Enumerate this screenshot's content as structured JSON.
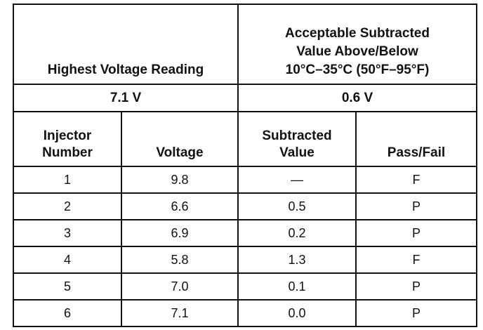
{
  "table": {
    "top_headers": {
      "highest": "Highest Voltage Reading",
      "acceptable": [
        "Acceptable Subtracted",
        "Value Above/Below",
        "10°C–35°C (50°F–95°F)"
      ]
    },
    "top_values": {
      "highest": "7.1 V",
      "acceptable": "0.6 V"
    },
    "column_headers": [
      [
        "Injector",
        "Number"
      ],
      [
        "Voltage"
      ],
      [
        "Subtracted",
        "Value"
      ],
      [
        "Pass/Fail"
      ]
    ],
    "rows": [
      [
        "1",
        "9.8",
        "—",
        "F"
      ],
      [
        "2",
        "6.6",
        "0.5",
        "P"
      ],
      [
        "3",
        "6.9",
        "0.2",
        "P"
      ],
      [
        "4",
        "5.8",
        "1.3",
        "F"
      ],
      [
        "5",
        "7.0",
        "0.1",
        "P"
      ],
      [
        "6",
        "7.1",
        "0.0",
        "P"
      ]
    ]
  }
}
